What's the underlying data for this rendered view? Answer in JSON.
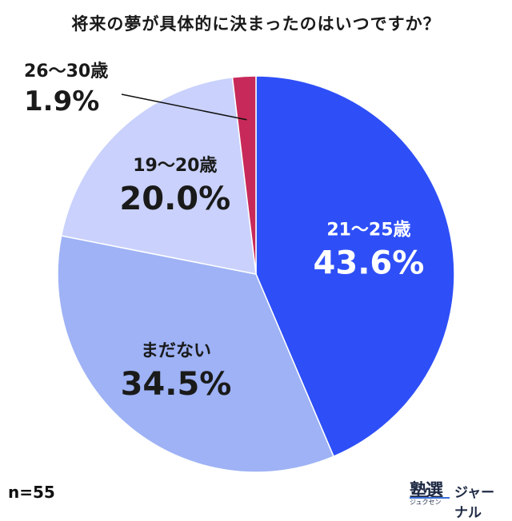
{
  "chart_data": {
    "type": "pie",
    "title": "将来の夢が具体的に決まったのはいつですか？",
    "categories": [
      "21〜25歳",
      "まだない",
      "19〜20歳",
      "26〜30歳"
    ],
    "values": [
      43.6,
      34.5,
      20.0,
      1.9
    ],
    "value_labels": [
      "43.6%",
      "34.5%",
      "20.0%",
      "1.9%"
    ],
    "colors": [
      "#2e4ff7",
      "#9eb2f5",
      "#c9d1fc",
      "#c72a5a"
    ],
    "label_colors": [
      "#ffffff",
      "#1a1a1a",
      "#1a1a1a",
      "#1a1a1a"
    ],
    "start": "12 o'clock",
    "direction": "clockwise"
  },
  "sample_size": "n=55",
  "brand": {
    "kanji": "塾選",
    "sub": "ジュクセン",
    "text": "ジャーナル",
    "accent": "#3b6fd8"
  }
}
